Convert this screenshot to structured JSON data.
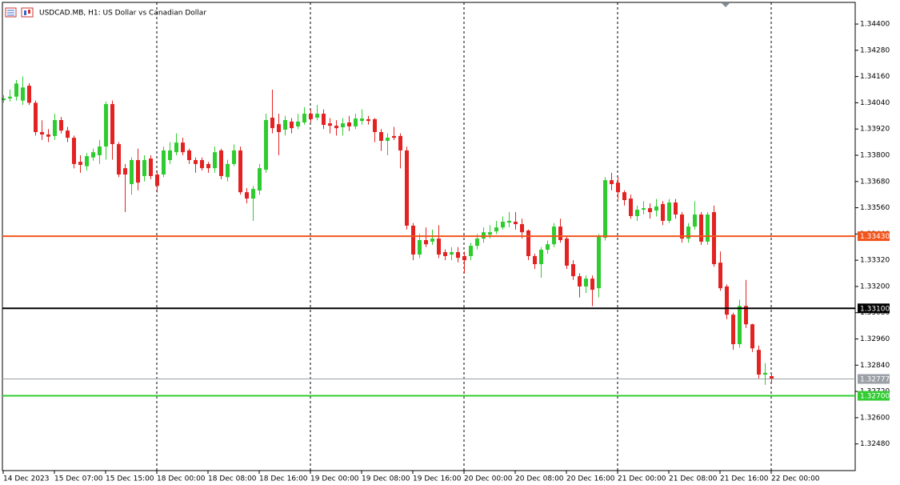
{
  "chart_data": {
    "type": "candlestick",
    "title": "USDCAD.MB, H1:  US Dollar vs Canadian Dollar",
    "categories": [
      "14 Dec 2023",
      null,
      null,
      null,
      null,
      null,
      null,
      null,
      "15 Dec 07:00",
      null,
      null,
      null,
      null,
      null,
      null,
      null,
      "15 Dec 15:00",
      null,
      null,
      null,
      null,
      null,
      null,
      null,
      "18 Dec 00:00",
      null,
      null,
      null,
      null,
      null,
      null,
      null,
      "18 Dec 08:00",
      null,
      null,
      null,
      null,
      null,
      null,
      null,
      "18 Dec 16:00",
      null,
      null,
      null,
      null,
      null,
      null,
      null,
      "19 Dec 00:00",
      null,
      null,
      null,
      null,
      null,
      null,
      null,
      "19 Dec 08:00",
      null,
      null,
      null,
      null,
      null,
      null,
      null,
      "19 Dec 16:00",
      null,
      null,
      null,
      null,
      null,
      null,
      null,
      "20 Dec 00:00",
      null,
      null,
      null,
      null,
      null,
      null,
      null,
      "20 Dec 08:00",
      null,
      null,
      null,
      null,
      null,
      null,
      null,
      "20 Dec 16:00",
      null,
      null,
      null,
      null,
      null,
      null,
      null,
      "21 Dec 00:00",
      null,
      null,
      null,
      null,
      null,
      null,
      null,
      "21 Dec 08:00",
      null,
      null,
      null,
      null,
      null,
      null,
      null,
      "21 Dec 16:00",
      null,
      null,
      null,
      null,
      null,
      null,
      null,
      "22 Dec 00:00"
    ],
    "open": [
      1.34052,
      1.3406,
      1.34068,
      1.3405,
      1.34118,
      1.3404,
      1.33906,
      1.33895,
      1.33888,
      1.33961,
      1.33913,
      1.3388,
      1.3377,
      1.3375,
      1.3379,
      1.338,
      1.3384,
      1.34034,
      1.33851,
      1.33741,
      1.33668,
      1.33778,
      1.33705,
      1.33785,
      1.33712,
      1.33712,
      1.33778,
      1.33814,
      1.33858,
      1.33822,
      1.33778,
      1.33778,
      1.3376,
      1.33741,
      1.33822,
      1.337,
      1.3376,
      1.33822,
      1.33631,
      1.33602,
      1.33639,
      1.33734,
      1.33972,
      1.33942,
      1.33917,
      1.33954,
      1.33932,
      1.3395,
      1.3399,
      1.33972,
      1.3399,
      1.33946,
      1.33935,
      1.33928,
      1.3395,
      1.33932,
      1.33957,
      1.33965,
      1.33965,
      1.33906,
      1.33866,
      1.33888,
      1.33888,
      1.33822,
      1.33478,
      1.33346,
      1.33412,
      1.33405,
      1.33419,
      1.33357,
      1.33346,
      1.33357,
      1.33339,
      1.33339,
      1.33386,
      1.33419,
      1.33437,
      1.33452,
      1.3347,
      1.33492,
      1.33496,
      1.33485,
      1.33456,
      1.33339,
      1.33302,
      1.33368,
      1.33393,
      1.33474,
      1.33419,
      1.33302,
      1.33247,
      1.332,
      1.33236,
      1.33192,
      1.33423,
      1.33686,
      1.33675,
      1.33631,
      1.33602,
      1.33522,
      1.33551,
      1.33558,
      1.33547,
      1.33577,
      1.335,
      1.33584,
      1.33529,
      1.33419,
      1.33474,
      1.33529,
      1.33405,
      1.3354,
      1.33309,
      1.332,
      1.33071,
      1.32936,
      1.33111,
      1.33027,
      1.3291,
      1.32797,
      1.3279
    ],
    "high": [
      1.34075,
      1.341,
      1.34144,
      1.3416,
      1.3413,
      1.3405,
      1.3396,
      1.3392,
      1.3399,
      1.33975,
      1.3393,
      1.3389,
      1.338,
      1.3381,
      1.3383,
      1.3387,
      1.34045,
      1.3405,
      1.3386,
      1.3376,
      1.3379,
      1.3383,
      1.338,
      1.338,
      1.3373,
      1.3384,
      1.3386,
      1.339,
      1.3388,
      1.3383,
      1.3379,
      1.3379,
      1.3377,
      1.3384,
      1.3383,
      1.3378,
      1.3385,
      1.3384,
      1.3365,
      1.3366,
      1.3376,
      1.3399,
      1.341,
      1.3399,
      1.3398,
      1.3397,
      1.3399,
      1.3402,
      1.3401,
      1.3403,
      1.3401,
      1.3397,
      1.3396,
      1.3397,
      1.3398,
      1.3399,
      1.3401,
      1.3398,
      1.3397,
      1.3392,
      1.339,
      1.3393,
      1.339,
      1.3384,
      1.3349,
      1.3344,
      1.3347,
      1.3346,
      1.3348,
      1.3337,
      1.3338,
      1.3338,
      1.3336,
      1.334,
      1.3344,
      1.3347,
      1.3348,
      1.335,
      1.3352,
      1.3354,
      1.3354,
      1.3351,
      1.3346,
      1.3335,
      1.3338,
      1.3341,
      1.3349,
      1.3351,
      1.3343,
      1.3332,
      1.3326,
      1.3325,
      1.3325,
      1.3344,
      1.337,
      1.3372,
      1.337,
      1.3364,
      1.3362,
      1.3357,
      1.3359,
      1.3358,
      1.336,
      1.3359,
      1.336,
      1.336,
      1.3354,
      1.3349,
      1.3359,
      1.3354,
      1.3354,
      1.3357,
      1.3336,
      1.3321,
      1.3308,
      1.3314,
      1.3323,
      1.3303,
      1.3293,
      1.3285,
      1.328
    ],
    "low": [
      1.3404,
      1.34045,
      1.3405,
      1.3403,
      1.3403,
      1.3389,
      1.3387,
      1.3386,
      1.3387,
      1.339,
      1.3386,
      1.3374,
      1.3372,
      1.3373,
      1.33775,
      1.3376,
      1.3378,
      1.3378,
      1.337,
      1.3354,
      1.3362,
      1.3364,
      1.3368,
      1.3369,
      1.3363,
      1.337,
      1.3376,
      1.338,
      1.338,
      1.3376,
      1.3372,
      1.3373,
      1.3372,
      1.3372,
      1.3369,
      1.3368,
      1.3375,
      1.3362,
      1.3358,
      1.335,
      1.3362,
      1.3372,
      1.339,
      1.338,
      1.3389,
      1.339,
      1.3392,
      1.3394,
      1.3395,
      1.3396,
      1.3392,
      1.339,
      1.3389,
      1.3389,
      1.3391,
      1.3392,
      1.3394,
      1.3394,
      1.3386,
      1.3382,
      1.338,
      1.3387,
      1.3374,
      1.3346,
      1.3332,
      1.3333,
      1.3338,
      1.3339,
      1.3333,
      1.3332,
      1.3332,
      1.3331,
      1.3326,
      1.3332,
      1.3337,
      1.334,
      1.3342,
      1.3344,
      1.3346,
      1.3347,
      1.3346,
      1.3342,
      1.3332,
      1.3328,
      1.3324,
      1.3335,
      1.3338,
      1.334,
      1.3328,
      1.3323,
      1.3315,
      1.3317,
      1.3311,
      1.3315,
      1.3341,
      1.3364,
      1.336,
      1.3357,
      1.3351,
      1.335,
      1.3353,
      1.3351,
      1.3352,
      1.3348,
      1.3349,
      1.3351,
      1.334,
      1.334,
      1.3346,
      1.3339,
      1.3339,
      1.3329,
      1.3318,
      1.3305,
      1.3291,
      1.3292,
      1.3301,
      1.329,
      1.3278,
      1.3275,
      1.3276
    ],
    "close": [
      1.3406,
      1.34068,
      1.34128,
      1.3411,
      1.3404,
      1.33906,
      1.33895,
      1.33885,
      1.33961,
      1.33913,
      1.3388,
      1.3376,
      1.33756,
      1.33796,
      1.33814,
      1.3384,
      1.34034,
      1.33851,
      1.33712,
      1.33712,
      1.33778,
      1.33675,
      1.33778,
      1.33705,
      1.3366,
      1.33822,
      1.33822,
      1.33858,
      1.33814,
      1.33778,
      1.3376,
      1.33741,
      1.33741,
      1.33814,
      1.33705,
      1.3376,
      1.33822,
      1.33631,
      1.33602,
      1.33646,
      1.33741,
      1.33961,
      1.33924,
      1.33906,
      1.33961,
      1.33924,
      1.33954,
      1.3399,
      1.33965,
      1.3399,
      1.33939,
      1.33935,
      1.33924,
      1.33946,
      1.33932,
      1.33968,
      1.33968,
      1.33957,
      1.33906,
      1.33866,
      1.3388,
      1.3388,
      1.33822,
      1.33478,
      1.33346,
      1.33412,
      1.33393,
      1.33419,
      1.33346,
      1.33339,
      1.33357,
      1.33331,
      1.3332,
      1.33386,
      1.33419,
      1.33448,
      1.33448,
      1.3347,
      1.33496,
      1.335,
      1.33485,
      1.33448,
      1.33339,
      1.33302,
      1.33368,
      1.33393,
      1.33474,
      1.33412,
      1.33295,
      1.33247,
      1.332,
      1.33236,
      1.33185,
      1.3343,
      1.33686,
      1.33668,
      1.33631,
      1.33595,
      1.33522,
      1.33551,
      1.33558,
      1.3354,
      1.33566,
      1.335,
      1.33584,
      1.33529,
      1.33419,
      1.33474,
      1.33529,
      1.33405,
      1.33529,
      1.33302,
      1.33192,
      1.33071,
      1.32936,
      1.33111,
      1.33027,
      1.32917,
      1.32797,
      1.32805,
      1.32777
    ],
    "up_color": "#2ecc2e",
    "down_color": "#e32222",
    "ylim": [
      1.32358,
      1.34499
    ],
    "yticks": [
      {
        "value": 1.344,
        "label": "1.34400"
      },
      {
        "value": 1.3428,
        "label": "1.34280"
      },
      {
        "value": 1.3416,
        "label": "1.34160"
      },
      {
        "value": 1.3404,
        "label": "1.34040"
      },
      {
        "value": 1.3392,
        "label": "1.33920"
      },
      {
        "value": 1.338,
        "label": "1.33800"
      },
      {
        "value": 1.3368,
        "label": "1.33680"
      },
      {
        "value": 1.3356,
        "label": "1.33560"
      },
      {
        "value": 1.3344,
        "label": "1.33440"
      },
      {
        "value": 1.3332,
        "label": "1.33320"
      },
      {
        "value": 1.332,
        "label": "1.33200"
      },
      {
        "value": 1.3308,
        "label": "1.33080"
      },
      {
        "value": 1.3296,
        "label": "1.32960"
      },
      {
        "value": 1.3284,
        "label": "1.32840"
      },
      {
        "value": 1.3272,
        "label": "1.32720"
      },
      {
        "value": 1.326,
        "label": "1.32600"
      },
      {
        "value": 1.3248,
        "label": "1.32480"
      }
    ],
    "separators": [
      24,
      48,
      72,
      96,
      120
    ],
    "levels": [
      {
        "value": 1.3343,
        "label": "1.33430",
        "color": "#f2541b",
        "width": 2
      },
      {
        "value": 1.331,
        "label": "1.33100",
        "color": "#000000",
        "width": 2
      },
      {
        "value": 1.32777,
        "label": "1.32777",
        "color": "#9aa0a6",
        "width": 1
      },
      {
        "value": 1.327,
        "label": "1.32700",
        "color": "#33cc33",
        "width": 2
      }
    ]
  }
}
